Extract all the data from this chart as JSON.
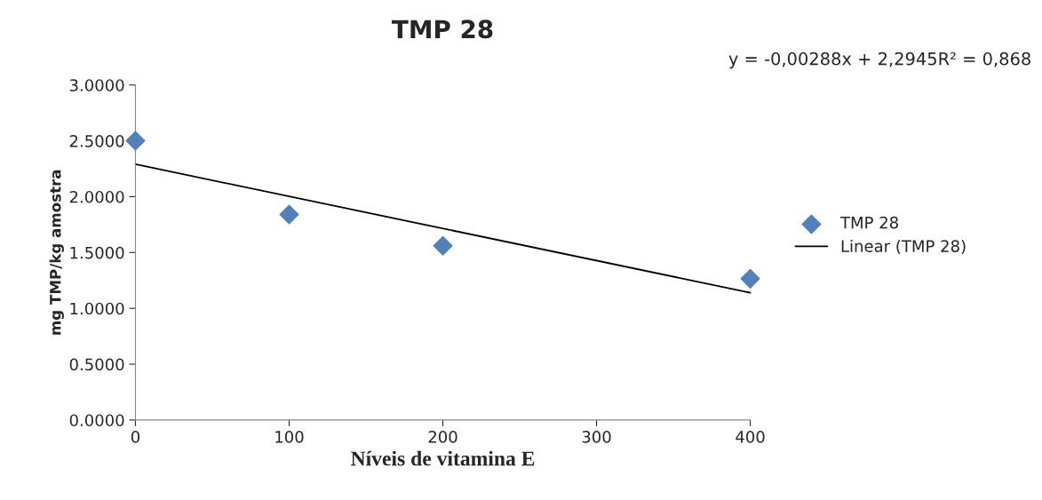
{
  "chart_data": {
    "type": "scatter",
    "title": "TMP 28",
    "xlabel": "Níveis de vitamina E",
    "ylabel": "mg TMP/kg amostra",
    "annotations": [
      "y = -0,00288x + 2,2945R² = 0,868"
    ],
    "xlim": [
      0,
      400
    ],
    "xticks": [
      0,
      100,
      200,
      300,
      400
    ],
    "ylim": [
      0,
      3
    ],
    "yticks": [
      {
        "value": 0,
        "label": "0.0000"
      },
      {
        "value": 0.5,
        "label": "0.5000"
      },
      {
        "value": 1,
        "label": "1.0000"
      },
      {
        "value": 1.5,
        "label": "1.5000"
      },
      {
        "value": 2,
        "label": "2.0000"
      },
      {
        "value": 2.5,
        "label": "2.5000"
      },
      {
        "value": 3,
        "label": "3.0000"
      }
    ],
    "grid": false,
    "legend": "right",
    "series": [
      {
        "name": "TMP 28",
        "marker": "diamond",
        "color": "#4f81bd",
        "x": [
          0,
          100,
          200,
          400
        ],
        "values": [
          2.5,
          1.84,
          1.56,
          1.265
        ]
      },
      {
        "name": "Linear (TMP 28)",
        "type": "line",
        "marker": "none",
        "line_style": "solid",
        "color": "#000000",
        "x": [
          0,
          400
        ],
        "values": [
          2.29,
          1.14
        ]
      }
    ]
  }
}
